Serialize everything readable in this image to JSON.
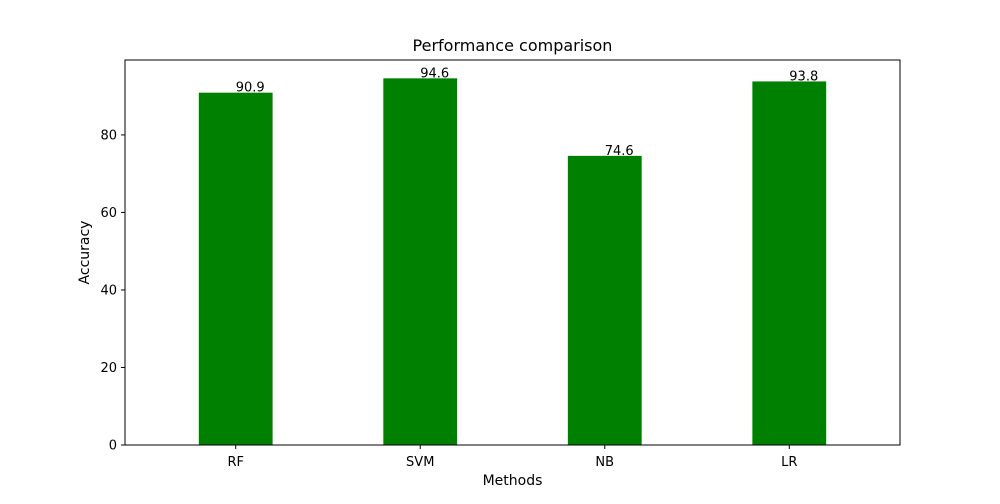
{
  "chart_data": {
    "type": "bar",
    "title": "Performance comparison",
    "xlabel": "Methods",
    "ylabel": "Accuracy",
    "categories": [
      "RF",
      "SVM",
      "NB",
      "LR"
    ],
    "values": [
      90.9,
      94.6,
      74.6,
      93.8
    ],
    "value_labels": [
      "90.9",
      "94.6",
      "74.6",
      "93.8"
    ],
    "yticks": [
      0,
      20,
      40,
      60,
      80
    ],
    "ytick_labels": [
      "0",
      "20",
      "40",
      "60",
      "80"
    ],
    "ylim": [
      0,
      99.33
    ],
    "bar_color": "#008000",
    "grid": false,
    "legend": "none"
  }
}
